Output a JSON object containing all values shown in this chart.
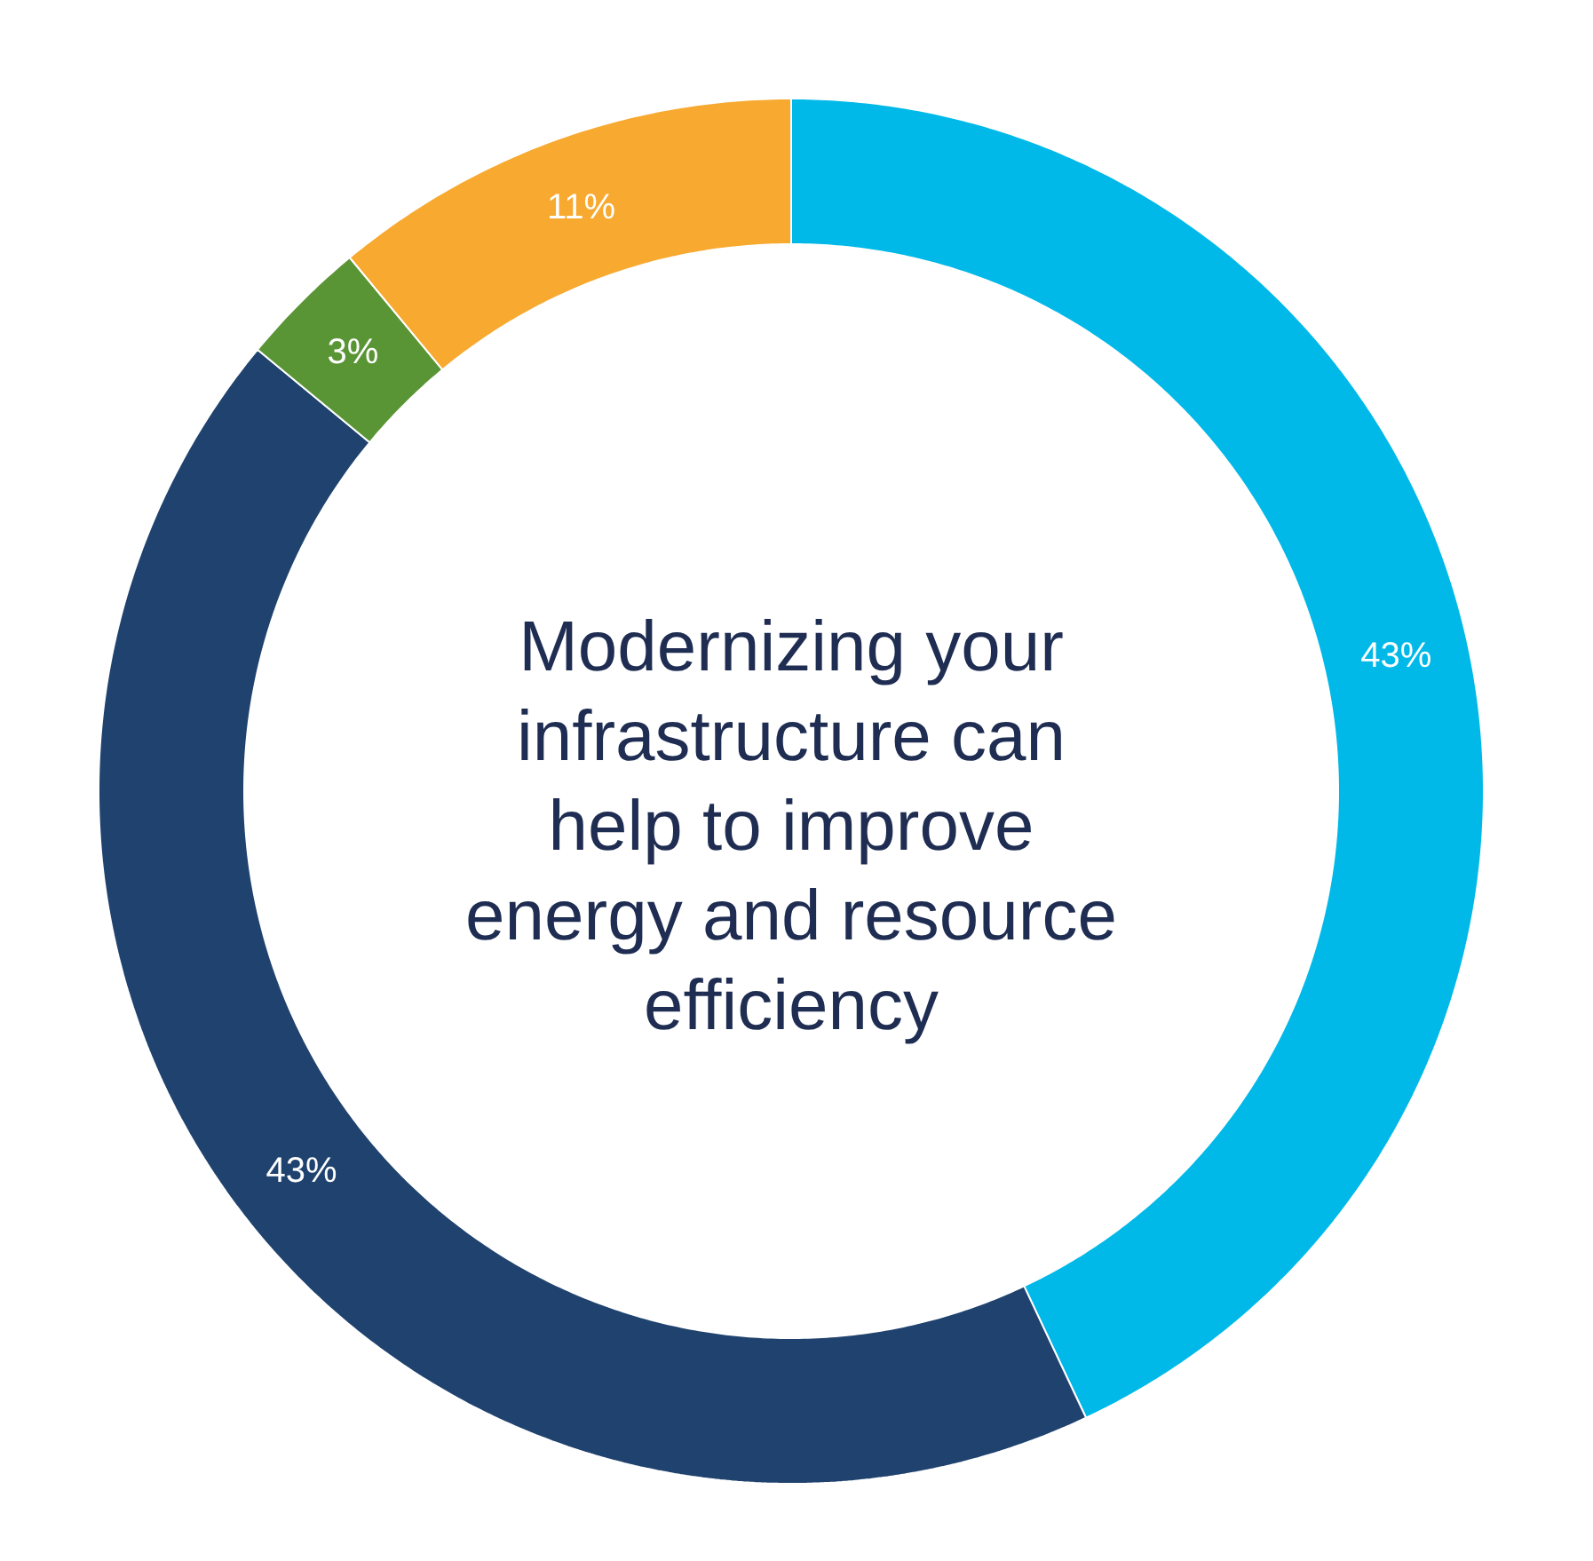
{
  "chart_data": {
    "type": "donut",
    "title": "Modernizing your infrastructure can help to improve energy and resource efficiency",
    "categories": [
      null,
      null,
      null,
      null
    ],
    "values": [
      43,
      43,
      3,
      11
    ],
    "colors": [
      "#00b9e8",
      "#20426e",
      "#5a9535",
      "#f8a92f"
    ],
    "value_labels": [
      "43%",
      "43%",
      "3%",
      "11%"
    ]
  }
}
